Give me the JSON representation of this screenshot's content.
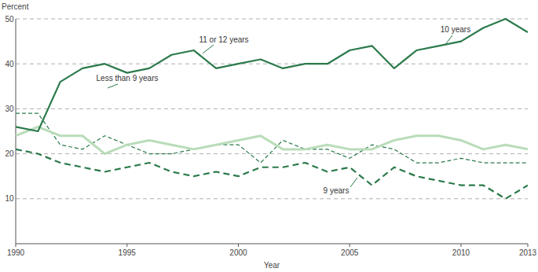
{
  "chart_data": {
    "type": "line",
    "y_label": "Percent",
    "x_label": "Year",
    "x": [
      1990,
      1991,
      1992,
      1993,
      1994,
      1995,
      1996,
      1997,
      1998,
      1999,
      2000,
      2001,
      2002,
      2003,
      2004,
      2005,
      2006,
      2007,
      2008,
      2009,
      2010,
      2011,
      2012,
      2013
    ],
    "xlim": [
      1990,
      2013
    ],
    "xticks": [
      1990,
      1995,
      2000,
      2005,
      2010,
      2013
    ],
    "ylim": [
      0,
      50
    ],
    "yticks": [
      10,
      20,
      30,
      40,
      50
    ],
    "grid": true,
    "series": [
      {
        "name": "11 or 12 years",
        "color": "#2b7a4b",
        "line_style": "solid",
        "values": [
          26,
          25,
          36,
          39,
          40,
          38,
          39,
          42,
          43,
          39,
          40,
          41,
          39,
          40,
          40,
          43,
          44,
          39,
          43,
          44,
          45,
          48,
          50,
          47
        ]
      },
      {
        "name": "10 years",
        "color": "#b9dcb9",
        "line_style": "solid",
        "values": [
          24,
          26,
          24,
          24,
          20,
          22,
          23,
          22,
          21,
          22,
          23,
          24,
          21,
          21,
          22,
          21,
          21,
          23,
          24,
          24,
          23,
          21,
          22,
          21
        ]
      },
      {
        "name": "Less than 9 years",
        "color": "#2b7a4b",
        "line_style": "dashed",
        "values": [
          29,
          29,
          22,
          21,
          24,
          22,
          20,
          20,
          21,
          22,
          22,
          18,
          23,
          21,
          21,
          19,
          22,
          21,
          18,
          18,
          19,
          18,
          18,
          18
        ]
      },
      {
        "name": "9 years",
        "color": "#2b7a4b",
        "line_style": "long-dashed",
        "values": [
          21,
          20,
          18,
          17,
          16,
          17,
          18,
          16,
          15,
          16,
          15,
          17,
          17,
          18,
          16,
          17,
          13,
          17,
          15,
          14,
          13,
          13,
          10,
          13
        ]
      }
    ]
  }
}
